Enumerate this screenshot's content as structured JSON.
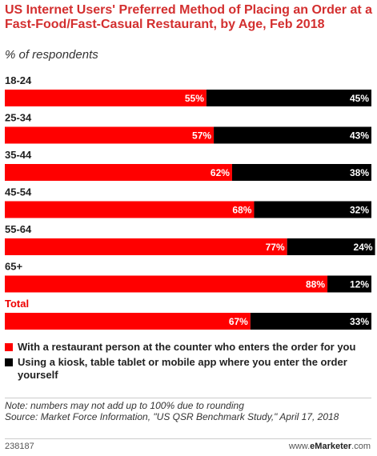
{
  "header": {
    "title": "US Internet Users' Preferred Method of Placing an Order at a Fast-Food/Fast-Casual Restaurant, by Age, Feb 2018",
    "subtitle": "% of respondents"
  },
  "legend": {
    "items": [
      {
        "label": "With a restaurant person at the counter who enters the order for you",
        "color": "#ff0000"
      },
      {
        "label": "Using a kiosk, table tablet or mobile app where you enter the order yourself",
        "color": "#000000"
      }
    ]
  },
  "notes": {
    "note": "Note: numbers may not add up to 100% due to rounding",
    "source": "Source: Market Force Information, \"US QSR Benchmark Study,\" April 17, 2018"
  },
  "footer": {
    "id": "238187",
    "brand_prefix": "www.",
    "brand_name": "eMarketer",
    "brand_suffix": ".com"
  },
  "chart_data": {
    "type": "bar",
    "orientation": "horizontal",
    "stacked": true,
    "categories": [
      "18-24",
      "25-34",
      "35-44",
      "45-54",
      "55-64",
      "65+",
      "Total"
    ],
    "series": [
      {
        "name": "With a restaurant person at the counter who enters the order for you",
        "color": "#ff0000",
        "values": [
          55,
          57,
          62,
          68,
          77,
          88,
          67
        ]
      },
      {
        "name": "Using a kiosk, table tablet or mobile app where you enter the order yourself",
        "color": "#000000",
        "values": [
          45,
          43,
          38,
          32,
          24,
          12,
          33
        ]
      }
    ],
    "value_suffix": "%",
    "xlim": [
      0,
      100
    ],
    "grid": false,
    "legend_position": "bottom"
  }
}
